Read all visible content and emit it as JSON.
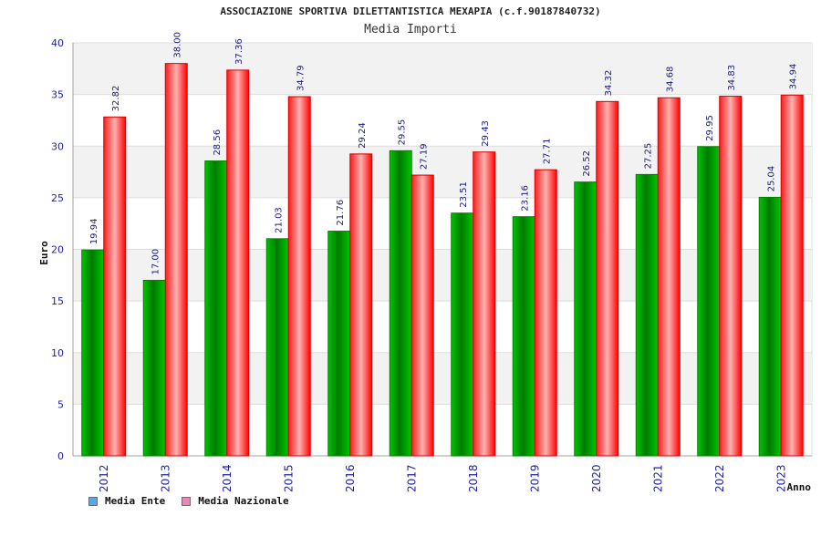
{
  "header": {
    "title": "ASSOCIAZIONE SPORTIVA DILETTANTISTICA MEXAPIA (c.f.90187840732)",
    "subtitle": "Media Importi"
  },
  "legend": {
    "items": [
      {
        "label": "Media Ente",
        "color": "#5ca5e6"
      },
      {
        "label": "Media Nazionale",
        "color": "#e58bb3"
      }
    ]
  },
  "chart_data": {
    "type": "bar",
    "title": "Media Importi",
    "xlabel": "Anno",
    "ylabel": "Euro",
    "ylim": [
      0,
      40
    ],
    "yticks": [
      0,
      5,
      10,
      15,
      20,
      25,
      30,
      35,
      40
    ],
    "categories": [
      "2012",
      "2013",
      "2014",
      "2015",
      "2016",
      "2017",
      "2018",
      "2019",
      "2020",
      "2021",
      "2022",
      "2023"
    ],
    "series": [
      {
        "name": "Media Ente",
        "color": "#00a000",
        "values": [
          19.94,
          17.0,
          28.56,
          21.03,
          21.76,
          29.55,
          23.51,
          23.16,
          26.52,
          27.25,
          29.95,
          25.04
        ],
        "labels": [
          "19.94",
          "17.00",
          "28.56",
          "21.03",
          "21.76",
          "29.55",
          "23.51",
          "23.16",
          "26.52",
          "27.25",
          "29.95",
          "25.04"
        ]
      },
      {
        "name": "Media Nazionale",
        "color": "#ff0000",
        "values": [
          32.82,
          38.0,
          37.36,
          34.79,
          29.24,
          27.19,
          29.43,
          27.71,
          34.32,
          34.68,
          34.83,
          34.94
        ],
        "labels": [
          "32.82",
          "38.00",
          "37.36",
          "34.79",
          "29.24",
          "27.19",
          "29.43",
          "27.71",
          "34.32",
          "34.68",
          "34.83",
          "34.94"
        ]
      }
    ],
    "grid": true,
    "legend_position": "bottom-left"
  }
}
